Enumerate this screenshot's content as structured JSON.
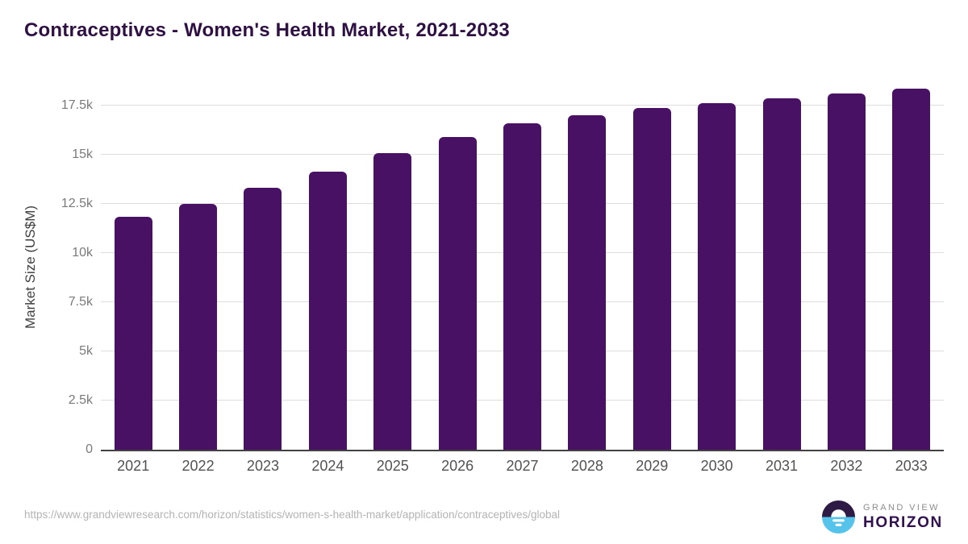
{
  "title": "Contraceptives - Women's Health Market, 2021-2033",
  "chart_data": {
    "type": "bar",
    "title": "Contraceptives - Women's Health Market, 2021-2033",
    "categories": [
      "2021",
      "2022",
      "2023",
      "2024",
      "2025",
      "2026",
      "2027",
      "2028",
      "2029",
      "2030",
      "2031",
      "2032",
      "2033"
    ],
    "values": [
      11840,
      12500,
      13320,
      14140,
      15080,
      15900,
      16600,
      17010,
      17380,
      17620,
      17870,
      18110,
      18360
    ],
    "xlabel": "",
    "ylabel": "Market Size (US$M)",
    "ylim": [
      0,
      18570
    ],
    "yticks": [
      {
        "value": 0,
        "label": "0"
      },
      {
        "value": 2500,
        "label": "2.5k"
      },
      {
        "value": 5000,
        "label": "5k"
      },
      {
        "value": 7500,
        "label": "7.5k"
      },
      {
        "value": 10000,
        "label": "10k"
      },
      {
        "value": 12500,
        "label": "12.5k"
      },
      {
        "value": 15000,
        "label": "15k"
      },
      {
        "value": 17500,
        "label": "17.5k"
      }
    ],
    "grid": true,
    "legend": false,
    "bar_color": "#481164"
  },
  "colors": {
    "title_text": "#2f1043",
    "bar": "#481164",
    "gridline": "#dedede",
    "axis_line": "#424242",
    "tick_text": "#7a7a7a",
    "x_tick_text": "#525252",
    "source_text": "#b3b3b3",
    "logo_purple": "#2d1a45",
    "logo_blue": "#55c3ea",
    "logo_wordmark": "#321150"
  },
  "footer": {
    "source_url": "https://www.grandviewresearch.com/horizon/statistics/women-s-health-market/application/contraceptives/global",
    "logo": {
      "line1": "GRAND VIEW",
      "line2": "HORIZON"
    }
  }
}
